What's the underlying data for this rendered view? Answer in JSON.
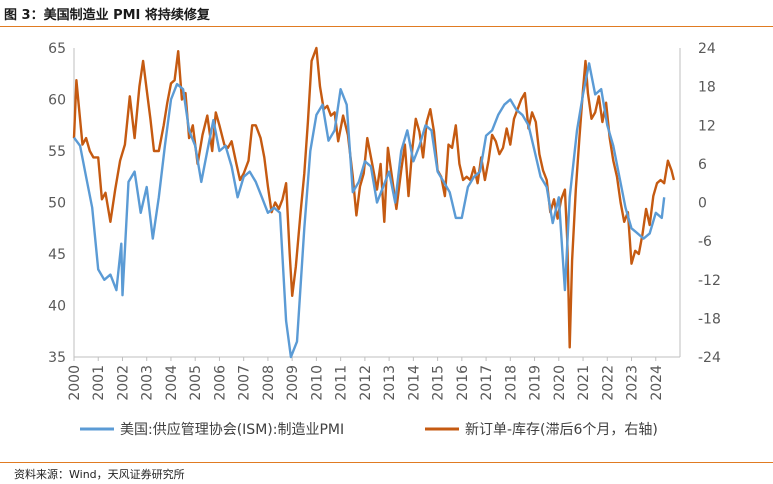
{
  "figure": {
    "title": "图 3：美国制造业 PMI 将持续修复",
    "source": "资料来源：Wind，天风证券研究所"
  },
  "colors": {
    "series_ism": "#5b9bd5",
    "series_no_inv": "#c55a11",
    "rule": "#e07b22",
    "axis": "#bfbfbf",
    "tick_text": "#595959"
  },
  "chart_data": {
    "type": "line",
    "x_ticks": [
      "2000",
      "2001",
      "2002",
      "2003",
      "2004",
      "2005",
      "2006",
      "2007",
      "2008",
      "2009",
      "2010",
      "2011",
      "2012",
      "2013",
      "2014",
      "2015",
      "2016",
      "2017",
      "2018",
      "2019",
      "2020",
      "2021",
      "2022",
      "2023",
      "2024"
    ],
    "y_left": {
      "ylim": [
        35,
        65
      ],
      "ticks": [
        "35",
        "40",
        "45",
        "50",
        "55",
        "60",
        "65"
      ]
    },
    "y_right": {
      "ylim": [
        -24,
        24
      ],
      "ticks": [
        "-24",
        "-18",
        "-12",
        "-6",
        "0",
        "6",
        "12",
        "18",
        "24"
      ]
    },
    "legend_placement": "bottom",
    "grid": false,
    "series": [
      {
        "name": "美国:供应管理协会(ISM):制造业PMI",
        "axis": "left",
        "points": [
          [
            2000.0,
            56.3
          ],
          [
            2000.25,
            55.5
          ],
          [
            2000.5,
            52.5
          ],
          [
            2000.75,
            49.5
          ],
          [
            2001.0,
            43.5
          ],
          [
            2001.25,
            42.5
          ],
          [
            2001.5,
            43.0
          ],
          [
            2001.75,
            41.5
          ],
          [
            2001.95,
            46.0
          ],
          [
            2002.0,
            41.0
          ],
          [
            2002.25,
            52.0
          ],
          [
            2002.5,
            53.0
          ],
          [
            2002.75,
            49.0
          ],
          [
            2003.0,
            51.5
          ],
          [
            2003.25,
            46.5
          ],
          [
            2003.5,
            50.5
          ],
          [
            2003.75,
            55.5
          ],
          [
            2004.0,
            60.0
          ],
          [
            2004.25,
            61.5
          ],
          [
            2004.5,
            61.0
          ],
          [
            2004.75,
            57.0
          ],
          [
            2005.0,
            55.5
          ],
          [
            2005.25,
            52.0
          ],
          [
            2005.5,
            55.0
          ],
          [
            2005.75,
            58.0
          ],
          [
            2006.0,
            55.0
          ],
          [
            2006.25,
            55.5
          ],
          [
            2006.5,
            53.5
          ],
          [
            2006.75,
            50.5
          ],
          [
            2007.0,
            52.5
          ],
          [
            2007.25,
            53.0
          ],
          [
            2007.5,
            52.0
          ],
          [
            2007.75,
            50.5
          ],
          [
            2008.0,
            49.0
          ],
          [
            2008.25,
            49.5
          ],
          [
            2008.5,
            49.0
          ],
          [
            2008.75,
            38.5
          ],
          [
            2008.95,
            34.5
          ],
          [
            2009.2,
            36.5
          ],
          [
            2009.5,
            47.5
          ],
          [
            2009.75,
            55.0
          ],
          [
            2010.0,
            58.5
          ],
          [
            2010.25,
            59.5
          ],
          [
            2010.5,
            56.0
          ],
          [
            2010.75,
            57.0
          ],
          [
            2011.0,
            61.0
          ],
          [
            2011.25,
            59.5
          ],
          [
            2011.5,
            51.0
          ],
          [
            2011.75,
            52.0
          ],
          [
            2012.0,
            54.0
          ],
          [
            2012.25,
            53.5
          ],
          [
            2012.5,
            50.0
          ],
          [
            2012.75,
            51.5
          ],
          [
            2013.0,
            53.0
          ],
          [
            2013.25,
            50.0
          ],
          [
            2013.5,
            55.0
          ],
          [
            2013.75,
            57.0
          ],
          [
            2014.0,
            54.0
          ],
          [
            2014.25,
            55.5
          ],
          [
            2014.5,
            57.5
          ],
          [
            2014.75,
            57.0
          ],
          [
            2015.0,
            53.0
          ],
          [
            2015.25,
            52.0
          ],
          [
            2015.5,
            51.0
          ],
          [
            2015.75,
            48.5
          ],
          [
            2016.0,
            48.5
          ],
          [
            2016.25,
            51.5
          ],
          [
            2016.5,
            52.5
          ],
          [
            2016.75,
            53.0
          ],
          [
            2017.0,
            56.5
          ],
          [
            2017.25,
            57.0
          ],
          [
            2017.5,
            58.5
          ],
          [
            2017.75,
            59.5
          ],
          [
            2018.0,
            60.0
          ],
          [
            2018.25,
            59.0
          ],
          [
            2018.5,
            58.5
          ],
          [
            2018.75,
            57.5
          ],
          [
            2019.0,
            55.0
          ],
          [
            2019.25,
            52.5
          ],
          [
            2019.5,
            51.5
          ],
          [
            2019.75,
            48.0
          ],
          [
            2020.0,
            50.5
          ],
          [
            2020.25,
            41.5
          ],
          [
            2020.45,
            50.5
          ],
          [
            2020.75,
            57.0
          ],
          [
            2021.0,
            60.5
          ],
          [
            2021.25,
            63.5
          ],
          [
            2021.5,
            60.5
          ],
          [
            2021.75,
            61.0
          ],
          [
            2022.0,
            57.5
          ],
          [
            2022.25,
            55.5
          ],
          [
            2022.5,
            52.5
          ],
          [
            2022.75,
            49.5
          ],
          [
            2023.0,
            47.5
          ],
          [
            2023.25,
            47.0
          ],
          [
            2023.5,
            46.5
          ],
          [
            2023.75,
            47.0
          ],
          [
            2024.0,
            49.0
          ],
          [
            2024.25,
            48.5
          ],
          [
            2024.35,
            50.5
          ]
        ]
      },
      {
        "name": "新订单-库存(滞后6个月，右轴)",
        "axis": "right",
        "points": [
          [
            2000.0,
            10.0
          ],
          [
            2000.1,
            19.0
          ],
          [
            2000.2,
            15.0
          ],
          [
            2000.35,
            9.0
          ],
          [
            2000.5,
            10.0
          ],
          [
            2000.65,
            8.0
          ],
          [
            2000.8,
            7.0
          ],
          [
            2001.0,
            7.0
          ],
          [
            2001.15,
            0.5
          ],
          [
            2001.3,
            1.5
          ],
          [
            2001.5,
            -3.0
          ],
          [
            2001.7,
            2.0
          ],
          [
            2001.9,
            6.5
          ],
          [
            2002.1,
            9.0
          ],
          [
            2002.3,
            16.5
          ],
          [
            2002.5,
            10.0
          ],
          [
            2002.7,
            18.0
          ],
          [
            2002.85,
            22.0
          ],
          [
            2003.0,
            17.5
          ],
          [
            2003.15,
            13.0
          ],
          [
            2003.3,
            8.0
          ],
          [
            2003.5,
            8.0
          ],
          [
            2003.7,
            12.0
          ],
          [
            2003.85,
            15.5
          ],
          [
            2004.0,
            18.5
          ],
          [
            2004.15,
            19.0
          ],
          [
            2004.3,
            23.5
          ],
          [
            2004.45,
            16.0
          ],
          [
            2004.6,
            17.0
          ],
          [
            2004.75,
            10.0
          ],
          [
            2004.9,
            12.0
          ],
          [
            2005.1,
            6.0
          ],
          [
            2005.3,
            10.5
          ],
          [
            2005.5,
            13.5
          ],
          [
            2005.7,
            8.0
          ],
          [
            2005.85,
            14.0
          ],
          [
            2006.0,
            12.0
          ],
          [
            2006.2,
            9.0
          ],
          [
            2006.35,
            8.5
          ],
          [
            2006.5,
            9.5
          ],
          [
            2006.7,
            6.0
          ],
          [
            2006.85,
            3.5
          ],
          [
            2007.0,
            4.5
          ],
          [
            2007.2,
            6.5
          ],
          [
            2007.35,
            12.0
          ],
          [
            2007.5,
            12.0
          ],
          [
            2007.7,
            10.0
          ],
          [
            2007.85,
            7.0
          ],
          [
            2008.0,
            2.5
          ],
          [
            2008.15,
            -1.5
          ],
          [
            2008.3,
            0.0
          ],
          [
            2008.45,
            -1.0
          ],
          [
            2008.6,
            0.5
          ],
          [
            2008.75,
            3.0
          ],
          [
            2008.9,
            -8.0
          ],
          [
            2009.0,
            -14.5
          ],
          [
            2009.15,
            -10.0
          ],
          [
            2009.35,
            -1.5
          ],
          [
            2009.5,
            4.5
          ],
          [
            2009.65,
            12.5
          ],
          [
            2009.8,
            22.0
          ],
          [
            2010.0,
            24.5
          ],
          [
            2010.15,
            18.0
          ],
          [
            2010.3,
            14.5
          ],
          [
            2010.45,
            15.0
          ],
          [
            2010.6,
            13.5
          ],
          [
            2010.75,
            14.0
          ],
          [
            2010.9,
            9.5
          ],
          [
            2011.1,
            13.5
          ],
          [
            2011.3,
            10.5
          ],
          [
            2011.5,
            4.0
          ],
          [
            2011.65,
            -2.0
          ],
          [
            2011.8,
            2.5
          ],
          [
            2011.95,
            4.5
          ],
          [
            2012.1,
            10.0
          ],
          [
            2012.3,
            6.0
          ],
          [
            2012.5,
            2.0
          ],
          [
            2012.65,
            6.0
          ],
          [
            2012.8,
            -3.0
          ],
          [
            2012.95,
            8.5
          ],
          [
            2013.15,
            3.0
          ],
          [
            2013.3,
            -1.0
          ],
          [
            2013.5,
            5.0
          ],
          [
            2013.65,
            9.0
          ],
          [
            2013.8,
            1.0
          ],
          [
            2013.95,
            8.0
          ],
          [
            2014.1,
            13.0
          ],
          [
            2014.25,
            11.0
          ],
          [
            2014.4,
            7.0
          ],
          [
            2014.55,
            12.5
          ],
          [
            2014.7,
            14.5
          ],
          [
            2014.85,
            11.0
          ],
          [
            2015.0,
            5.0
          ],
          [
            2015.15,
            4.0
          ],
          [
            2015.3,
            1.0
          ],
          [
            2015.45,
            9.0
          ],
          [
            2015.6,
            8.5
          ],
          [
            2015.75,
            12.0
          ],
          [
            2015.9,
            6.0
          ],
          [
            2016.05,
            3.5
          ],
          [
            2016.2,
            4.0
          ],
          [
            2016.35,
            3.5
          ],
          [
            2016.5,
            5.5
          ],
          [
            2016.65,
            3.0
          ],
          [
            2016.8,
            7.0
          ],
          [
            2016.95,
            3.5
          ],
          [
            2017.1,
            6.5
          ],
          [
            2017.25,
            10.5
          ],
          [
            2017.4,
            9.5
          ],
          [
            2017.55,
            7.5
          ],
          [
            2017.7,
            8.5
          ],
          [
            2017.85,
            11.5
          ],
          [
            2018.0,
            9.0
          ],
          [
            2018.15,
            13.0
          ],
          [
            2018.3,
            14.5
          ],
          [
            2018.45,
            16.0
          ],
          [
            2018.6,
            17.0
          ],
          [
            2018.75,
            11.5
          ],
          [
            2018.9,
            14.0
          ],
          [
            2019.05,
            12.5
          ],
          [
            2019.2,
            7.5
          ],
          [
            2019.35,
            5.0
          ],
          [
            2019.5,
            3.5
          ],
          [
            2019.65,
            -1.5
          ],
          [
            2019.8,
            0.5
          ],
          [
            2019.95,
            -2.5
          ],
          [
            2020.1,
            0.5
          ],
          [
            2020.25,
            2.0
          ],
          [
            2020.35,
            -6.0
          ],
          [
            2020.45,
            -22.5
          ],
          [
            2020.55,
            -9.0
          ],
          [
            2020.7,
            2.0
          ],
          [
            2020.85,
            10.0
          ],
          [
            2021.0,
            17.5
          ],
          [
            2021.1,
            22.0
          ],
          [
            2021.2,
            17.0
          ],
          [
            2021.35,
            13.0
          ],
          [
            2021.5,
            14.0
          ],
          [
            2021.65,
            16.5
          ],
          [
            2021.8,
            12.5
          ],
          [
            2021.95,
            15.5
          ],
          [
            2022.1,
            10.0
          ],
          [
            2022.25,
            6.5
          ],
          [
            2022.4,
            4.0
          ],
          [
            2022.55,
            0.0
          ],
          [
            2022.7,
            -3.0
          ],
          [
            2022.85,
            -1.5
          ],
          [
            2023.0,
            -9.5
          ],
          [
            2023.15,
            -7.5
          ],
          [
            2023.3,
            -8.0
          ],
          [
            2023.45,
            -5.0
          ],
          [
            2023.6,
            -1.0
          ],
          [
            2023.75,
            -3.5
          ],
          [
            2023.9,
            1.0
          ],
          [
            2024.05,
            3.0
          ],
          [
            2024.2,
            3.5
          ],
          [
            2024.35,
            3.0
          ],
          [
            2024.5,
            6.5
          ],
          [
            2024.65,
            5.0
          ],
          [
            2024.75,
            3.5
          ]
        ]
      }
    ]
  }
}
